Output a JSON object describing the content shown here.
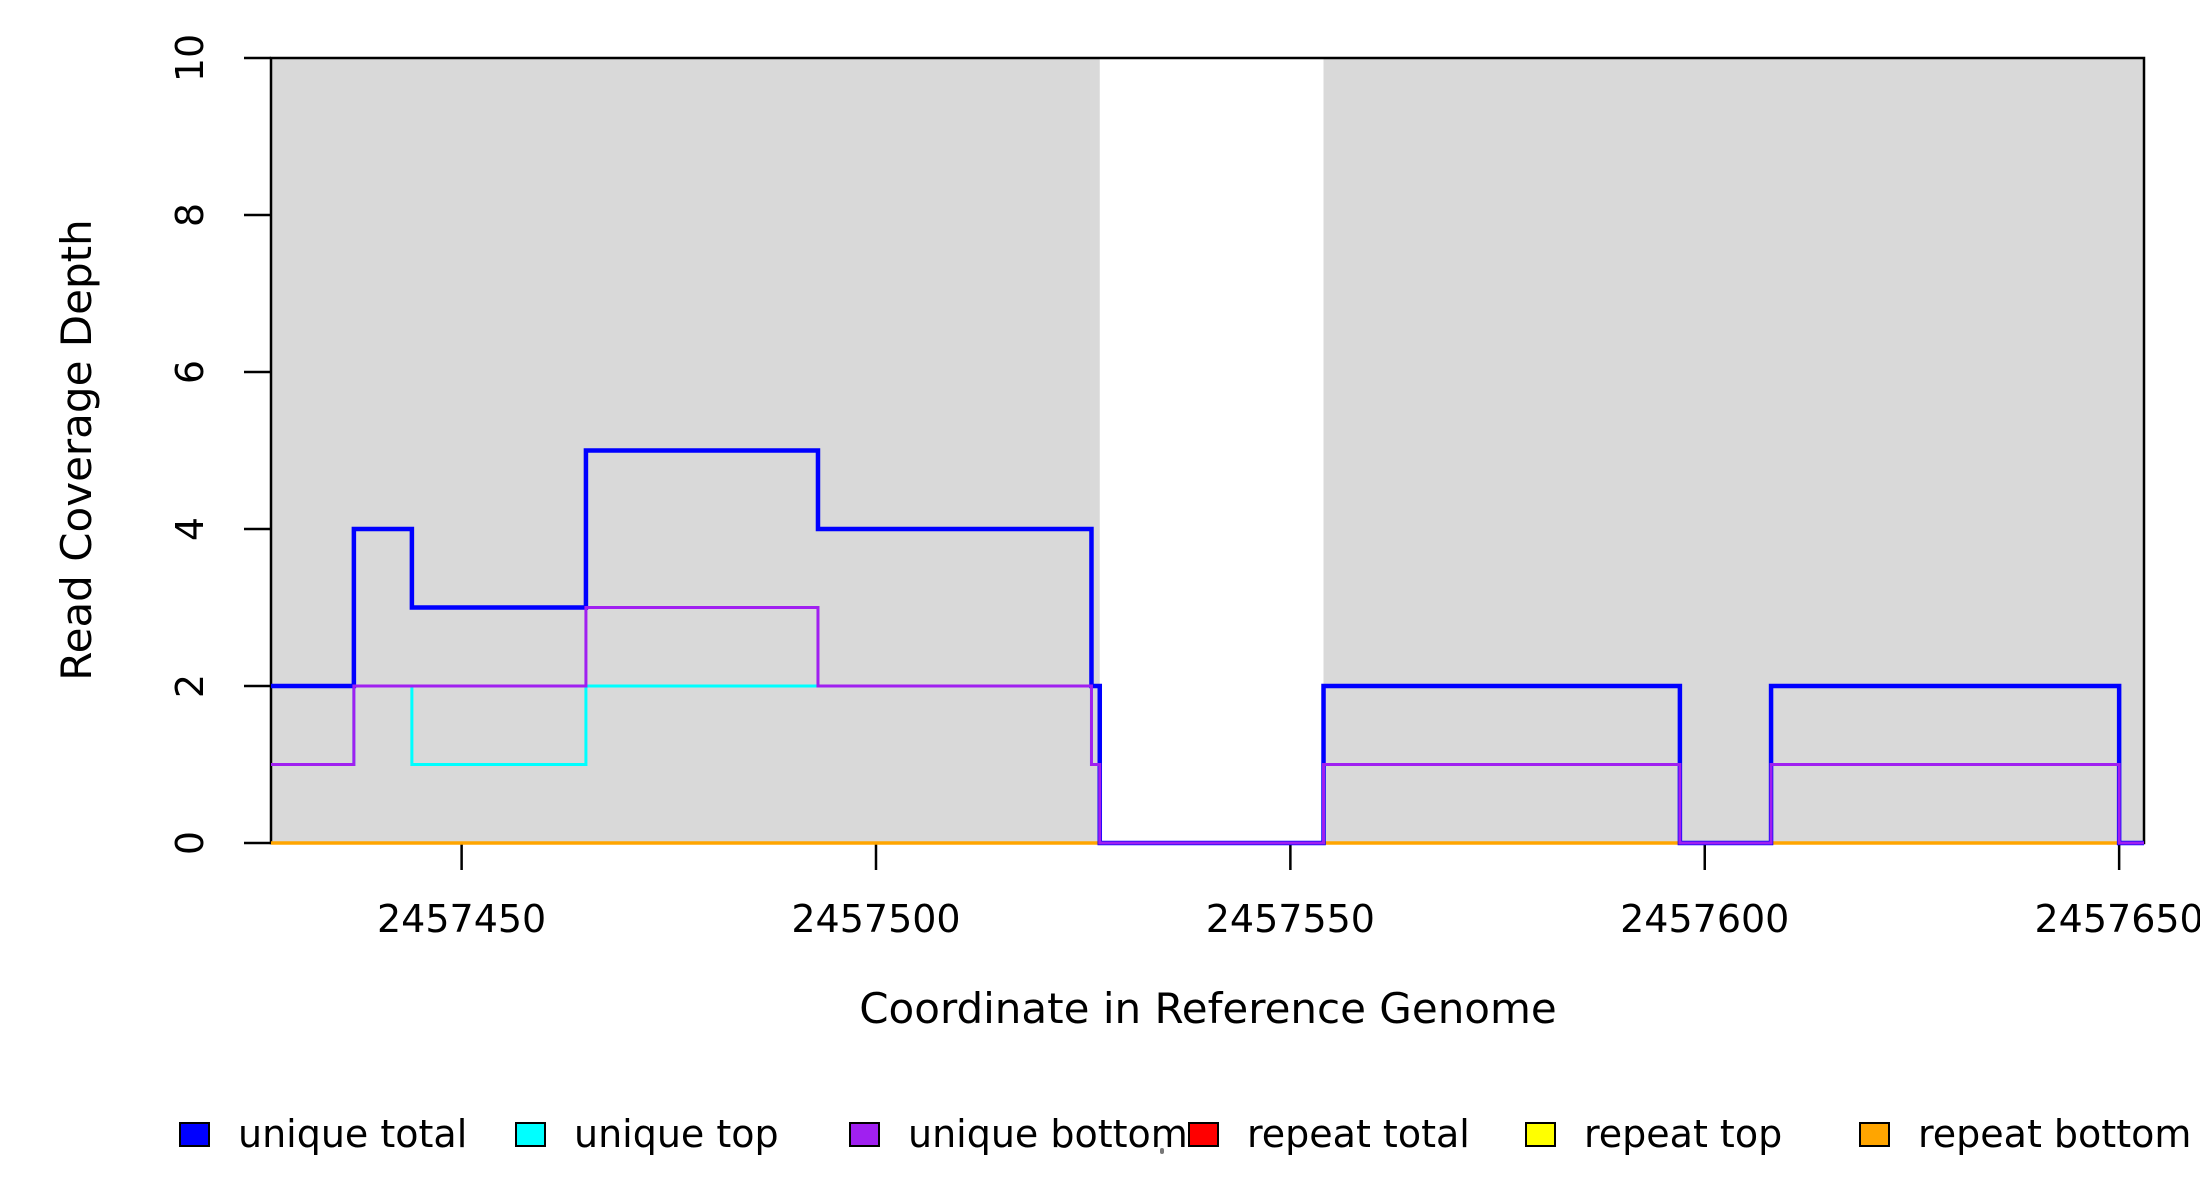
{
  "chart_data": {
    "type": "line",
    "subtype": "step-coverage",
    "title": "",
    "xlabel": "Coordinate in Reference Genome",
    "ylabel": "Read Coverage Depth",
    "xlim": [
      2457427,
      2457653
    ],
    "ylim": [
      0,
      10
    ],
    "x_ticks": [
      "2457450",
      "2457500",
      "2457550",
      "2457600",
      "2457650"
    ],
    "x_tick_values": [
      2457450,
      2457500,
      2457550,
      2457600,
      2457650
    ],
    "y_ticks": [
      "0",
      "2",
      "4",
      "6",
      "8",
      "10"
    ],
    "y_tick_values": [
      0,
      2,
      4,
      6,
      8,
      10
    ],
    "grid": false,
    "step_mode": "after",
    "shaded_regions": [
      {
        "x0": 2457427,
        "x1": 2457527,
        "color": "#d9d9d9"
      },
      {
        "x0": 2457554,
        "x1": 2457653,
        "color": "#d9d9d9"
      }
    ],
    "series": [
      {
        "name": "repeat total",
        "color": "#ff0000",
        "lwd": 3,
        "points": [
          [
            2457427,
            0
          ],
          [
            2457653,
            0
          ]
        ]
      },
      {
        "name": "repeat top",
        "color": "#ffff00",
        "lwd": 3,
        "points": [
          [
            2457427,
            0
          ],
          [
            2457653,
            0
          ]
        ]
      },
      {
        "name": "repeat bottom",
        "color": "#ffa500",
        "lwd": 3.5,
        "points": [
          [
            2457427,
            0
          ],
          [
            2457653,
            0
          ]
        ]
      },
      {
        "name": "unique top",
        "color": "#00ffff",
        "lwd": 3,
        "points": [
          [
            2457427,
            1
          ],
          [
            2457437,
            2
          ],
          [
            2457444,
            1
          ],
          [
            2457465,
            2
          ],
          [
            2457526,
            1
          ],
          [
            2457527,
            0
          ],
          [
            2457554,
            1
          ],
          [
            2457597,
            0
          ],
          [
            2457608,
            1
          ],
          [
            2457650,
            0
          ],
          [
            2457653,
            0
          ]
        ]
      },
      {
        "name": "unique total",
        "color": "#0000ff",
        "lwd": 4.5,
        "points": [
          [
            2457427,
            2
          ],
          [
            2457437,
            4
          ],
          [
            2457444,
            3
          ],
          [
            2457465,
            5
          ],
          [
            2457493,
            4
          ],
          [
            2457526,
            2
          ],
          [
            2457527,
            0
          ],
          [
            2457554,
            2
          ],
          [
            2457597,
            0
          ],
          [
            2457608,
            2
          ],
          [
            2457650,
            0
          ],
          [
            2457653,
            0
          ]
        ]
      },
      {
        "name": "unique bottom",
        "color": "#a020f0",
        "lwd": 3,
        "points": [
          [
            2457427,
            1
          ],
          [
            2457437,
            2
          ],
          [
            2457465,
            3
          ],
          [
            2457493,
            2
          ],
          [
            2457526,
            1
          ],
          [
            2457527,
            0
          ],
          [
            2457554,
            1
          ],
          [
            2457597,
            0
          ],
          [
            2457608,
            1
          ],
          [
            2457650,
            0
          ],
          [
            2457653,
            0
          ]
        ]
      }
    ],
    "legend": {
      "position": "bottom",
      "items": [
        {
          "label": "unique total",
          "color": "#0000ff"
        },
        {
          "label": "unique top",
          "color": "#00ffff"
        },
        {
          "label": "unique bottom",
          "color": "#a020f0"
        },
        {
          "label": "repeat total",
          "color": "#ff0000"
        },
        {
          "label": "repeat top",
          "color": "#ffff00"
        },
        {
          "label": "repeat bottom",
          "color": "#ffa500"
        }
      ]
    }
  }
}
